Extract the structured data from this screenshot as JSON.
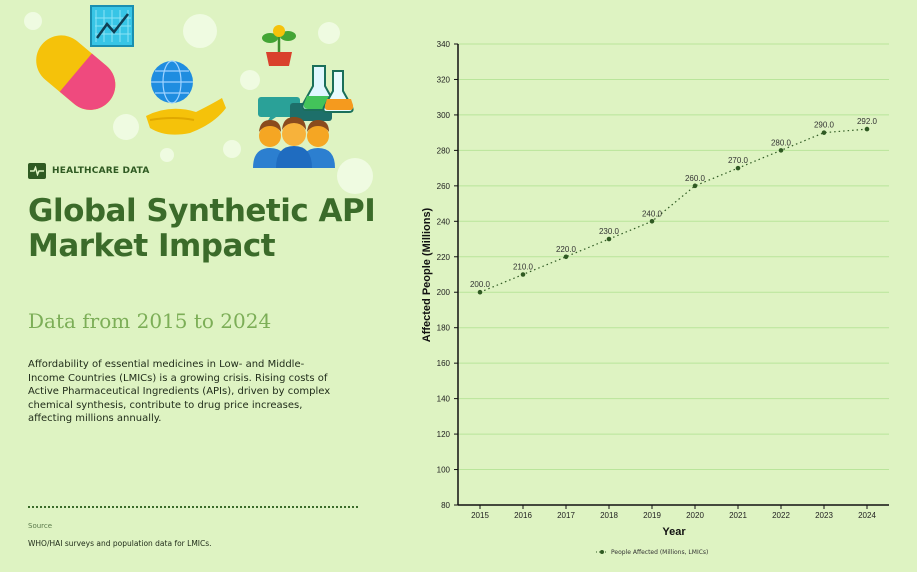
{
  "badge": {
    "label": "HEALTHCARE DATA"
  },
  "title": "Global Synthetic API Market Impact",
  "subtitle": "Data from 2015 to 2024",
  "description": "Affordability of essential medicines in Low- and Middle-Income Countries (LMICs) is a growing crisis. Rising costs of Active Pharmaceutical Ingredients (APIs), driven by complex chemical synthesis, contribute to drug price increases, affecting millions annually.",
  "source": {
    "label": "Source",
    "text": "WHO/HAI surveys and population data for LMICs."
  },
  "colors": {
    "background": "#def3c2",
    "accent": "#3b6b2a",
    "line": "#2f5a22",
    "grid": "#b9e59a"
  },
  "chart_data": {
    "type": "line",
    "categories": [
      "2015",
      "2016",
      "2017",
      "2018",
      "2019",
      "2020",
      "2021",
      "2022",
      "2023",
      "2024"
    ],
    "series": [
      {
        "name": "People Affected (Millions, LMICs)",
        "values": [
          200,
          210,
          220,
          230,
          240,
          260,
          270,
          280,
          290,
          292
        ],
        "labels": [
          "200.0",
          "210.0",
          "220.0",
          "230.0",
          "240.0",
          "260.0",
          "270.0",
          "280.0",
          "290.0",
          "292.0"
        ]
      }
    ],
    "xlabel": "Year",
    "ylabel": "Affected People (Millions)",
    "ylim": [
      80,
      340
    ],
    "yticks": [
      80,
      100,
      120,
      140,
      160,
      180,
      200,
      220,
      240,
      260,
      280,
      300,
      320,
      340
    ],
    "grid": true,
    "legend": "bottom-center"
  }
}
